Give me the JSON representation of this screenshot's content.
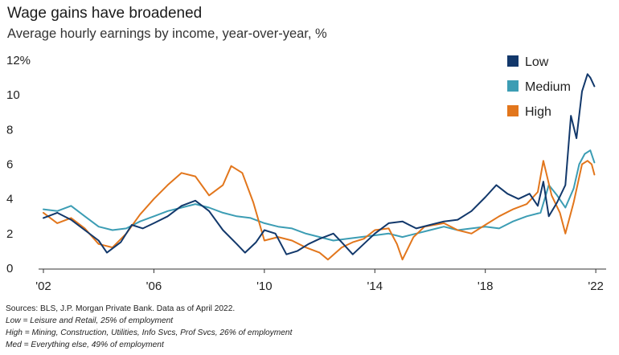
{
  "header": {
    "title": "Wage gains have broadened",
    "subtitle": "Average hourly earnings by income, year-over-year, %"
  },
  "footer": {
    "source": "Sources: BLS, J.P. Morgan Private Bank. Data as of April 2022.",
    "note_low": "Low = Leisure and Retail, 25% of employment",
    "note_high": "High = Mining, Construction, Utilities, Info Svcs, Prof Svcs, 26% of employment",
    "note_med": "Med = Everything else, 49% of employment"
  },
  "chart_data": {
    "type": "line",
    "title": "Average hourly earnings by income, year-over-year, %",
    "xlabel": "",
    "ylabel": "",
    "xlim": [
      2002,
      2022.2
    ],
    "ylim": [
      0,
      12
    ],
    "y_ticks": [
      0,
      2,
      4,
      6,
      8,
      10,
      12
    ],
    "y_tick_labels": [
      "0",
      "2",
      "4",
      "6",
      "8",
      "10",
      "12%"
    ],
    "x_ticks": [
      2002,
      2006,
      2010,
      2014,
      2018,
      2022
    ],
    "x_tick_labels": [
      "'02",
      "'06",
      "'10",
      "'14",
      "'18",
      "'22"
    ],
    "grid": false,
    "legend_position": "top-right",
    "series": [
      {
        "name": "Low",
        "color": "#12386b",
        "points": [
          [
            2002,
            2.9
          ],
          [
            2002.5,
            3.2
          ],
          [
            2003,
            2.8
          ],
          [
            2003.5,
            2.2
          ],
          [
            2004,
            1.6
          ],
          [
            2004.3,
            0.9
          ],
          [
            2004.8,
            1.5
          ],
          [
            2005.2,
            2.5
          ],
          [
            2005.6,
            2.3
          ],
          [
            2006,
            2.6
          ],
          [
            2006.5,
            3.0
          ],
          [
            2007,
            3.6
          ],
          [
            2007.5,
            3.9
          ],
          [
            2008,
            3.3
          ],
          [
            2008.5,
            2.2
          ],
          [
            2009,
            1.4
          ],
          [
            2009.3,
            0.9
          ],
          [
            2009.7,
            1.5
          ],
          [
            2010,
            2.2
          ],
          [
            2010.4,
            2.0
          ],
          [
            2010.8,
            0.8
          ],
          [
            2011.2,
            1.0
          ],
          [
            2011.6,
            1.4
          ],
          [
            2012,
            1.7
          ],
          [
            2012.5,
            2.0
          ],
          [
            2012.8,
            1.5
          ],
          [
            2013.2,
            0.8
          ],
          [
            2013.6,
            1.4
          ],
          [
            2014,
            2.0
          ],
          [
            2014.5,
            2.6
          ],
          [
            2015,
            2.7
          ],
          [
            2015.5,
            2.3
          ],
          [
            2016,
            2.5
          ],
          [
            2016.5,
            2.7
          ],
          [
            2017,
            2.8
          ],
          [
            2017.5,
            3.3
          ],
          [
            2018,
            4.1
          ],
          [
            2018.4,
            4.8
          ],
          [
            2018.8,
            4.3
          ],
          [
            2019.2,
            4.0
          ],
          [
            2019.6,
            4.3
          ],
          [
            2019.9,
            3.6
          ],
          [
            2020.1,
            5.0
          ],
          [
            2020.3,
            3.0
          ],
          [
            2020.6,
            3.8
          ],
          [
            2020.9,
            4.8
          ],
          [
            2021.1,
            8.8
          ],
          [
            2021.3,
            7.5
          ],
          [
            2021.5,
            10.2
          ],
          [
            2021.7,
            11.2
          ],
          [
            2021.8,
            11.0
          ],
          [
            2021.95,
            10.5
          ]
        ]
      },
      {
        "name": "Medium",
        "color": "#3c9db4",
        "points": [
          [
            2002,
            3.4
          ],
          [
            2002.5,
            3.3
          ],
          [
            2003,
            3.6
          ],
          [
            2003.5,
            3.0
          ],
          [
            2004,
            2.4
          ],
          [
            2004.5,
            2.2
          ],
          [
            2005,
            2.3
          ],
          [
            2005.5,
            2.7
          ],
          [
            2006,
            3.0
          ],
          [
            2006.5,
            3.3
          ],
          [
            2007,
            3.5
          ],
          [
            2007.5,
            3.7
          ],
          [
            2008,
            3.5
          ],
          [
            2008.5,
            3.2
          ],
          [
            2009,
            3.0
          ],
          [
            2009.5,
            2.9
          ],
          [
            2010,
            2.6
          ],
          [
            2010.5,
            2.4
          ],
          [
            2011,
            2.3
          ],
          [
            2011.5,
            2.0
          ],
          [
            2012,
            1.8
          ],
          [
            2012.5,
            1.6
          ],
          [
            2013,
            1.7
          ],
          [
            2013.5,
            1.8
          ],
          [
            2014,
            1.9
          ],
          [
            2014.5,
            2.0
          ],
          [
            2015,
            1.8
          ],
          [
            2015.5,
            2.0
          ],
          [
            2016,
            2.2
          ],
          [
            2016.5,
            2.4
          ],
          [
            2017,
            2.2
          ],
          [
            2017.5,
            2.3
          ],
          [
            2018,
            2.4
          ],
          [
            2018.5,
            2.3
          ],
          [
            2019,
            2.7
          ],
          [
            2019.5,
            3.0
          ],
          [
            2020,
            3.2
          ],
          [
            2020.3,
            4.8
          ],
          [
            2020.6,
            4.2
          ],
          [
            2020.9,
            3.5
          ],
          [
            2021.2,
            4.6
          ],
          [
            2021.4,
            6.0
          ],
          [
            2021.6,
            6.6
          ],
          [
            2021.8,
            6.8
          ],
          [
            2021.95,
            6.1
          ]
        ]
      },
      {
        "name": "High",
        "color": "#e2761c",
        "points": [
          [
            2002,
            3.2
          ],
          [
            2002.5,
            2.6
          ],
          [
            2003,
            2.9
          ],
          [
            2003.5,
            2.3
          ],
          [
            2004,
            1.4
          ],
          [
            2004.5,
            1.2
          ],
          [
            2005,
            2.0
          ],
          [
            2005.5,
            3.1
          ],
          [
            2006,
            4.0
          ],
          [
            2006.5,
            4.8
          ],
          [
            2007,
            5.5
          ],
          [
            2007.5,
            5.3
          ],
          [
            2008,
            4.2
          ],
          [
            2008.5,
            4.8
          ],
          [
            2008.8,
            5.9
          ],
          [
            2009.2,
            5.5
          ],
          [
            2009.6,
            3.8
          ],
          [
            2010,
            1.6
          ],
          [
            2010.5,
            1.8
          ],
          [
            2011,
            1.6
          ],
          [
            2011.5,
            1.2
          ],
          [
            2012,
            0.9
          ],
          [
            2012.3,
            0.5
          ],
          [
            2012.8,
            1.2
          ],
          [
            2013.2,
            1.5
          ],
          [
            2013.6,
            1.7
          ],
          [
            2014,
            2.2
          ],
          [
            2014.5,
            2.3
          ],
          [
            2014.8,
            1.4
          ],
          [
            2015,
            0.5
          ],
          [
            2015.4,
            1.8
          ],
          [
            2015.8,
            2.4
          ],
          [
            2016.5,
            2.6
          ],
          [
            2017,
            2.2
          ],
          [
            2017.5,
            2.0
          ],
          [
            2018,
            2.5
          ],
          [
            2018.5,
            3.0
          ],
          [
            2019,
            3.4
          ],
          [
            2019.5,
            3.7
          ],
          [
            2019.9,
            4.4
          ],
          [
            2020.1,
            6.2
          ],
          [
            2020.4,
            4.2
          ],
          [
            2020.7,
            3.2
          ],
          [
            2020.9,
            2.0
          ],
          [
            2021.2,
            3.8
          ],
          [
            2021.5,
            6.0
          ],
          [
            2021.7,
            6.2
          ],
          [
            2021.85,
            6.0
          ],
          [
            2021.95,
            5.4
          ]
        ]
      }
    ]
  }
}
